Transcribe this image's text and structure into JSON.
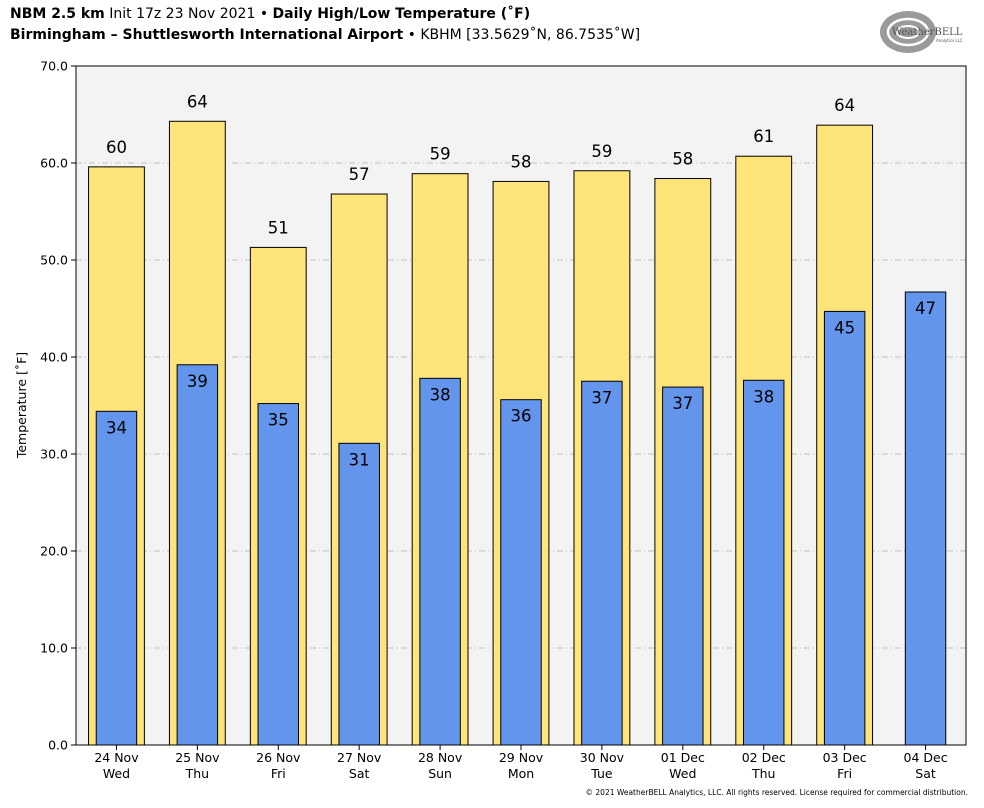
{
  "header": {
    "line1": {
      "model": "NBM 2.5 km",
      "init": "Init 17z 23 Nov 2021",
      "sep": "•",
      "product": "Daily High/Low Temperature (˚F)"
    },
    "line2": {
      "location": "Birmingham – Shuttlesworth International Airport",
      "sep": "•",
      "station": "KBHM [33.5629˚N, 86.7535˚W]"
    }
  },
  "logo": {
    "text_main": "WeatherBELL",
    "text_sub": "Analytics LLC"
  },
  "footer": {
    "copyright": "© 2021 WeatherBELL Analytics, LLC. All rights reserved. License required for commercial distribution."
  },
  "colors": {
    "high": "#ffe47a",
    "low": "#6495ed",
    "plot_bg": "#f3f3f3",
    "grid": "#b0b0b0"
  },
  "chart_data": {
    "type": "bar",
    "title": "Daily High/Low Temperature (˚F)",
    "xlabel": "",
    "ylabel": "Temperature [˚F]",
    "ylim": [
      0,
      70
    ],
    "yticks": [
      "0.0",
      "10.0",
      "20.0",
      "30.0",
      "40.0",
      "50.0",
      "60.0",
      "70.0"
    ],
    "grid": true,
    "categories": [
      {
        "date": "24 Nov",
        "day": "Wed"
      },
      {
        "date": "25 Nov",
        "day": "Thu"
      },
      {
        "date": "26 Nov",
        "day": "Fri"
      },
      {
        "date": "27 Nov",
        "day": "Sat"
      },
      {
        "date": "28 Nov",
        "day": "Sun"
      },
      {
        "date": "29 Nov",
        "day": "Mon"
      },
      {
        "date": "30 Nov",
        "day": "Tue"
      },
      {
        "date": "01 Dec",
        "day": "Wed"
      },
      {
        "date": "02 Dec",
        "day": "Thu"
      },
      {
        "date": "03 Dec",
        "day": "Fri"
      },
      {
        "date": "04 Dec",
        "day": "Sat"
      }
    ],
    "series": [
      {
        "name": "High",
        "values": [
          59.6,
          64.3,
          51.3,
          56.8,
          58.9,
          58.1,
          59.2,
          58.4,
          60.7,
          63.9,
          null
        ],
        "labels": [
          "60",
          "64",
          "51",
          "57",
          "59",
          "58",
          "59",
          "58",
          "61",
          "64",
          ""
        ]
      },
      {
        "name": "Low",
        "values": [
          34.4,
          39.2,
          35.2,
          31.1,
          37.8,
          35.6,
          37.5,
          36.9,
          37.6,
          44.7,
          46.7
        ],
        "labels": [
          "34",
          "39",
          "35",
          "31",
          "38",
          "36",
          "37",
          "37",
          "38",
          "45",
          "47"
        ]
      }
    ]
  }
}
